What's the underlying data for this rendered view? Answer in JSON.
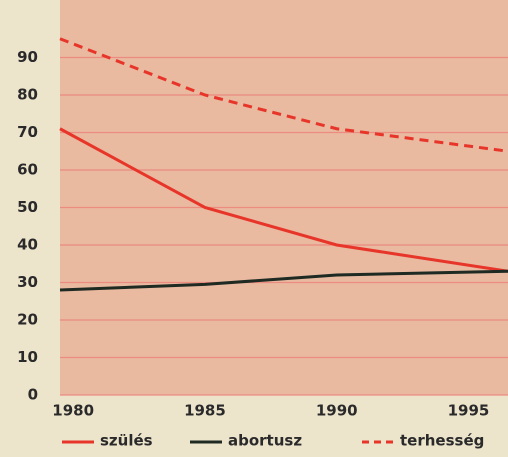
{
  "chart_data": {
    "type": "line",
    "x": [
      1979.5,
      1985,
      1990,
      1996.5
    ],
    "series": [
      {
        "name": "szülés",
        "color": "#e8352a",
        "dash": false,
        "values": [
          71,
          50,
          40,
          33
        ]
      },
      {
        "name": "abortusz",
        "color": "#1e2a22",
        "dash": false,
        "values": [
          28,
          29.5,
          32,
          33
        ]
      },
      {
        "name": "terhesség",
        "color": "#e8352a",
        "dash": true,
        "values": [
          95,
          80,
          71,
          65
        ]
      }
    ],
    "xlim": [
      1979.5,
      1996.5
    ],
    "xticks": [
      1980,
      1985,
      1990,
      1995
    ],
    "ylim": [
      0,
      100
    ],
    "yticks": [
      0,
      10,
      20,
      30,
      40,
      50,
      60,
      70,
      80,
      90
    ],
    "grid": true
  }
}
